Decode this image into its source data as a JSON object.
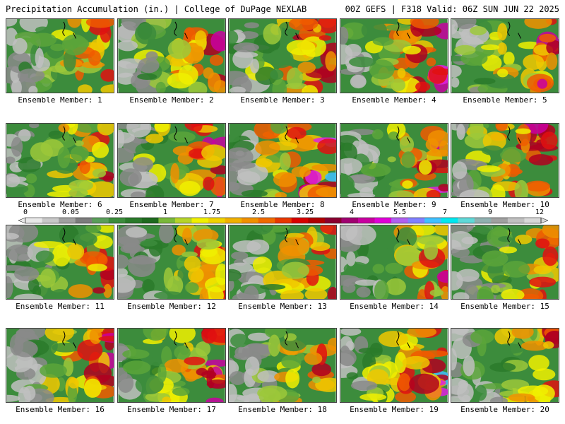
{
  "header": {
    "title": "Precipitation Accumulation (in.) | College of DuPage NEXLAB",
    "run": "00Z GEFS | F318 Valid: 06Z SUN JUN 22 2025"
  },
  "members": [
    {
      "label": "Ensemble Member: 1",
      "seed": 11,
      "bias": 0.0
    },
    {
      "label": "Ensemble Member: 2",
      "seed": 23,
      "bias": 0.1
    },
    {
      "label": "Ensemble Member: 3",
      "seed": 37,
      "bias": 0.1
    },
    {
      "label": "Ensemble Member: 4",
      "seed": 41,
      "bias": 0.2
    },
    {
      "label": "Ensemble Member: 5",
      "seed": 53,
      "bias": 0.1
    },
    {
      "label": "Ensemble Member: 6",
      "seed": 67,
      "bias": 0.0
    },
    {
      "label": "Ensemble Member: 7",
      "seed": 71,
      "bias": 0.15
    },
    {
      "label": "Ensemble Member: 8",
      "seed": 83,
      "bias": 0.25
    },
    {
      "label": "Ensemble Member: 9",
      "seed": 97,
      "bias": 0.1
    },
    {
      "label": "Ensemble Member: 10",
      "seed": 101,
      "bias": 0.2
    },
    {
      "label": "Ensemble Member: 11",
      "seed": 113,
      "bias": -0.05
    },
    {
      "label": "Ensemble Member: 12",
      "seed": 127,
      "bias": -0.05
    },
    {
      "label": "Ensemble Member: 13",
      "seed": 131,
      "bias": 0.0
    },
    {
      "label": "Ensemble Member: 14",
      "seed": 149,
      "bias": -0.05
    },
    {
      "label": "Ensemble Member: 15",
      "seed": 151,
      "bias": -0.05
    },
    {
      "label": "Ensemble Member: 16",
      "seed": 163,
      "bias": 0.05
    },
    {
      "label": "Ensemble Member: 17",
      "seed": 173,
      "bias": 0.1
    },
    {
      "label": "Ensemble Member: 18",
      "seed": 181,
      "bias": 0.0
    },
    {
      "label": "Ensemble Member: 19",
      "seed": 191,
      "bias": 0.2
    },
    {
      "label": "Ensemble Member: 20",
      "seed": 199,
      "bias": -0.05
    }
  ],
  "colorbar": {
    "labels": [
      "0",
      "0.05",
      "0.25",
      "1",
      "1.75",
      "2.5",
      "3.25",
      "4",
      "5.5",
      "7",
      "9",
      "12"
    ],
    "colors": [
      "#e8e8e8",
      "#c8c8c8",
      "#a0a0a0",
      "#7c7c7c",
      "#5a9e5a",
      "#3c8c3c",
      "#2a7a2a",
      "#1e6a1e",
      "#7ab83a",
      "#b6d42a",
      "#f0f000",
      "#f0d200",
      "#f0b000",
      "#f09000",
      "#f06a00",
      "#e83800",
      "#d80000",
      "#b00000",
      "#8a0030",
      "#a00070",
      "#c800a0",
      "#e000d8",
      "#b060f0",
      "#8080ff",
      "#40c0ff",
      "#00e8f0",
      "#60d8d8",
      "#90b0b0",
      "#a0a0a0",
      "#c0c0c0",
      "#d8d8d8"
    ]
  }
}
